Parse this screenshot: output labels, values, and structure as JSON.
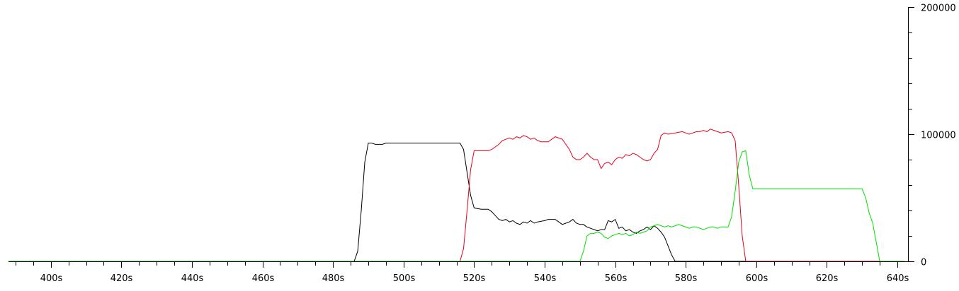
{
  "chart_data": {
    "type": "line",
    "title": "",
    "xlabel": "",
    "ylabel": "",
    "xlim": [
      388,
      643
    ],
    "ylim": [
      0,
      200000
    ],
    "x_unit_suffix": "s",
    "x_tick_labels": [
      "400s",
      "420s",
      "440s",
      "460s",
      "480s",
      "500s",
      "520s",
      "540s",
      "560s",
      "580s",
      "600s",
      "620s",
      "640s"
    ],
    "x_tick_values": [
      400,
      420,
      440,
      460,
      480,
      500,
      520,
      540,
      560,
      580,
      600,
      620,
      640
    ],
    "y_tick_labels": [
      "0",
      "100000",
      "200000"
    ],
    "y_tick_values": [
      0,
      100000,
      200000
    ],
    "y_axis_position": "right",
    "grid": false,
    "legend": "none",
    "series": [
      {
        "color": "#000000",
        "points": [
          [
            388,
            0
          ],
          [
            486,
            0
          ],
          [
            487,
            8000
          ],
          [
            488,
            40000
          ],
          [
            489,
            78000
          ],
          [
            490,
            93000
          ],
          [
            491,
            93000
          ],
          [
            492,
            92000
          ],
          [
            494,
            92000
          ],
          [
            495,
            93000
          ],
          [
            516,
            93000
          ],
          [
            517,
            88000
          ],
          [
            518,
            70000
          ],
          [
            519,
            52000
          ],
          [
            520,
            42000
          ],
          [
            522,
            41000
          ],
          [
            524,
            41000
          ],
          [
            525,
            39000
          ],
          [
            526,
            36000
          ],
          [
            527,
            33000
          ],
          [
            528,
            32000
          ],
          [
            529,
            33000
          ],
          [
            530,
            31000
          ],
          [
            531,
            32000
          ],
          [
            532,
            30000
          ],
          [
            533,
            29000
          ],
          [
            534,
            31000
          ],
          [
            535,
            30000
          ],
          [
            536,
            32000
          ],
          [
            537,
            30000
          ],
          [
            538,
            31000
          ],
          [
            540,
            32000
          ],
          [
            541,
            33000
          ],
          [
            543,
            33000
          ],
          [
            544,
            31000
          ],
          [
            545,
            29000
          ],
          [
            546,
            30000
          ],
          [
            547,
            31000
          ],
          [
            548,
            33000
          ],
          [
            549,
            30000
          ],
          [
            550,
            29000
          ],
          [
            551,
            29000
          ],
          [
            552,
            27000
          ],
          [
            553,
            26000
          ],
          [
            554,
            25000
          ],
          [
            555,
            24000
          ],
          [
            556,
            25000
          ],
          [
            557,
            25000
          ],
          [
            558,
            32000
          ],
          [
            559,
            31000
          ],
          [
            560,
            33000
          ],
          [
            561,
            26000
          ],
          [
            562,
            27000
          ],
          [
            563,
            24000
          ],
          [
            564,
            25000
          ],
          [
            565,
            23000
          ],
          [
            566,
            22000
          ],
          [
            567,
            24000
          ],
          [
            568,
            25000
          ],
          [
            569,
            27000
          ],
          [
            570,
            25000
          ],
          [
            571,
            28000
          ],
          [
            572,
            26000
          ],
          [
            573,
            23000
          ],
          [
            574,
            19000
          ],
          [
            575,
            12000
          ],
          [
            576,
            5000
          ],
          [
            577,
            0
          ],
          [
            642,
            0
          ]
        ]
      },
      {
        "color": "#e8001c",
        "points": [
          [
            388,
            0
          ],
          [
            516,
            0
          ],
          [
            517,
            10000
          ],
          [
            518,
            40000
          ],
          [
            519,
            72000
          ],
          [
            520,
            87000
          ],
          [
            524,
            87000
          ],
          [
            525,
            88000
          ],
          [
            526,
            90000
          ],
          [
            527,
            92000
          ],
          [
            528,
            95000
          ],
          [
            529,
            96000
          ],
          [
            530,
            97000
          ],
          [
            531,
            96000
          ],
          [
            532,
            98000
          ],
          [
            533,
            97000
          ],
          [
            534,
            99000
          ],
          [
            535,
            98000
          ],
          [
            536,
            96000
          ],
          [
            537,
            97000
          ],
          [
            538,
            95000
          ],
          [
            539,
            94000
          ],
          [
            541,
            94000
          ],
          [
            542,
            96000
          ],
          [
            543,
            98000
          ],
          [
            544,
            97000
          ],
          [
            545,
            96000
          ],
          [
            546,
            92000
          ],
          [
            547,
            88000
          ],
          [
            548,
            82000
          ],
          [
            549,
            80000
          ],
          [
            550,
            80000
          ],
          [
            551,
            82000
          ],
          [
            552,
            85000
          ],
          [
            553,
            82000
          ],
          [
            554,
            80000
          ],
          [
            555,
            80000
          ],
          [
            556,
            73000
          ],
          [
            557,
            77000
          ],
          [
            558,
            78000
          ],
          [
            559,
            76000
          ],
          [
            560,
            80000
          ],
          [
            561,
            82000
          ],
          [
            562,
            81000
          ],
          [
            563,
            84000
          ],
          [
            564,
            83000
          ],
          [
            565,
            85000
          ],
          [
            566,
            84000
          ],
          [
            567,
            82000
          ],
          [
            568,
            80000
          ],
          [
            569,
            79000
          ],
          [
            570,
            80000
          ],
          [
            571,
            85000
          ],
          [
            572,
            88000
          ],
          [
            573,
            99000
          ],
          [
            574,
            101000
          ],
          [
            575,
            100000
          ],
          [
            577,
            101000
          ],
          [
            579,
            102000
          ],
          [
            580,
            101000
          ],
          [
            581,
            100000
          ],
          [
            582,
            101000
          ],
          [
            583,
            102000
          ],
          [
            584,
            102000
          ],
          [
            585,
            103000
          ],
          [
            586,
            102000
          ],
          [
            587,
            104000
          ],
          [
            588,
            103000
          ],
          [
            589,
            102000
          ],
          [
            590,
            101000
          ],
          [
            592,
            102000
          ],
          [
            593,
            101000
          ],
          [
            594,
            95000
          ],
          [
            595,
            60000
          ],
          [
            596,
            20000
          ],
          [
            597,
            0
          ],
          [
            642,
            0
          ]
        ]
      },
      {
        "color": "#00e000",
        "points": [
          [
            388,
            0
          ],
          [
            550,
            0
          ],
          [
            551,
            8000
          ],
          [
            552,
            20000
          ],
          [
            553,
            22000
          ],
          [
            554,
            22000
          ],
          [
            555,
            23000
          ],
          [
            556,
            22000
          ],
          [
            557,
            19000
          ],
          [
            558,
            18000
          ],
          [
            559,
            20000
          ],
          [
            560,
            21000
          ],
          [
            561,
            22000
          ],
          [
            562,
            21000
          ],
          [
            563,
            22000
          ],
          [
            564,
            20000
          ],
          [
            565,
            21000
          ],
          [
            566,
            23000
          ],
          [
            567,
            22000
          ],
          [
            568,
            23000
          ],
          [
            569,
            24000
          ],
          [
            570,
            27000
          ],
          [
            571,
            28000
          ],
          [
            572,
            29000
          ],
          [
            573,
            28000
          ],
          [
            574,
            27000
          ],
          [
            575,
            28000
          ],
          [
            576,
            27000
          ],
          [
            577,
            28000
          ],
          [
            578,
            29000
          ],
          [
            579,
            28000
          ],
          [
            580,
            27000
          ],
          [
            581,
            26000
          ],
          [
            582,
            27000
          ],
          [
            583,
            27000
          ],
          [
            584,
            26000
          ],
          [
            585,
            25000
          ],
          [
            586,
            26000
          ],
          [
            587,
            27000
          ],
          [
            588,
            27000
          ],
          [
            589,
            26000
          ],
          [
            590,
            27000
          ],
          [
            592,
            27000
          ],
          [
            593,
            35000
          ],
          [
            594,
            55000
          ],
          [
            595,
            78000
          ],
          [
            596,
            86000
          ],
          [
            597,
            87000
          ],
          [
            598,
            68000
          ],
          [
            599,
            57000
          ],
          [
            600,
            57000
          ],
          [
            630,
            57000
          ],
          [
            631,
            50000
          ],
          [
            632,
            38000
          ],
          [
            633,
            30000
          ],
          [
            634,
            15000
          ],
          [
            635,
            0
          ],
          [
            642,
            0
          ]
        ]
      }
    ]
  }
}
